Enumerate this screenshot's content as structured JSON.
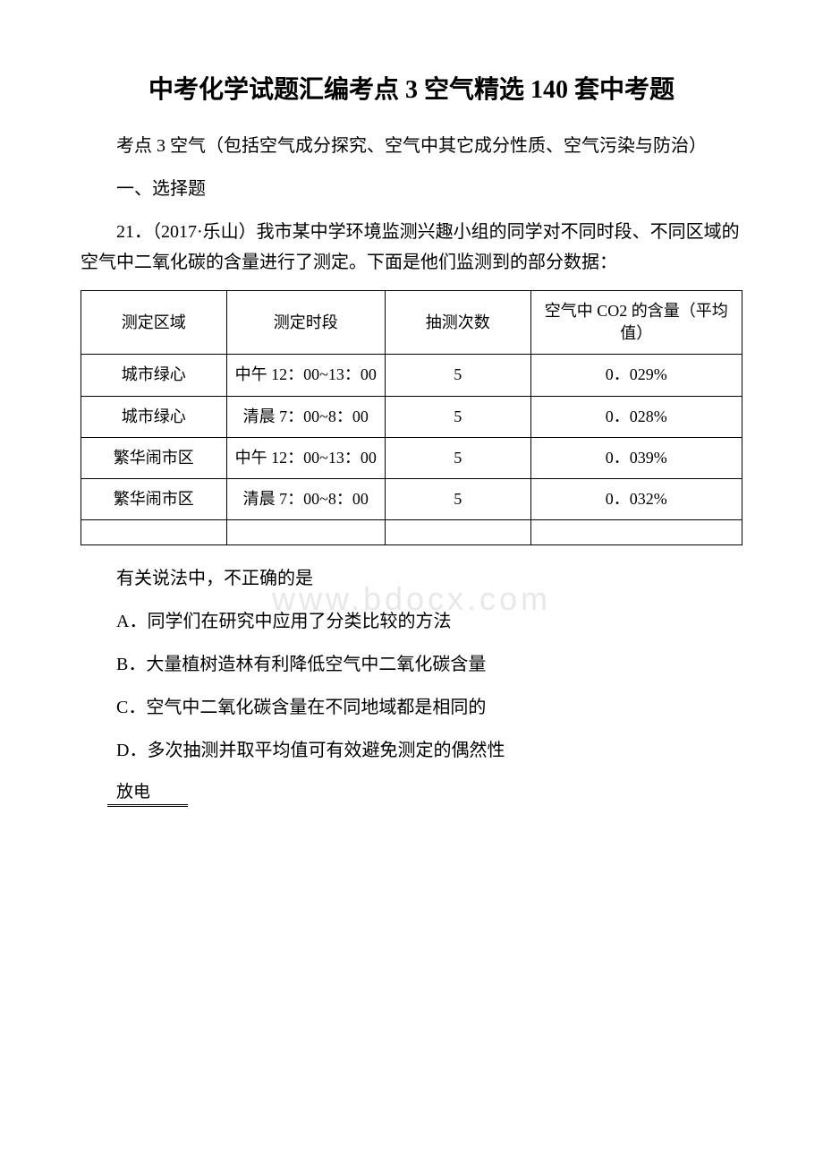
{
  "title": "中考化学试题汇编考点 3 空气精选 140 套中考题",
  "intro": "考点 3 空气（包括空气成分探究、空气中其它成分性质、空气污染与防治）",
  "sectionHeading": "一、选择题",
  "question": "21．（2017·乐山）我市某中学环境监测兴趣小组的同学对不同时段、不同区域的空气中二氧化碳的含量进行了测定。下面是他们监测到的部分数据：",
  "table": {
    "headers": [
      "测定区域",
      "测定时段",
      "抽测次数",
      "空气中 CO2 的含量（平均值）"
    ],
    "rows": [
      [
        "城市绿心",
        "中午 12：00~13：00",
        "5",
        "0．029%"
      ],
      [
        "城市绿心",
        "清晨 7：00~8：00",
        "5",
        "0．028%"
      ],
      [
        "繁华闹市区",
        "中午 12：00~13：00",
        "5",
        "0．039%"
      ],
      [
        "繁华闹市区",
        "清晨 7：00~8：00",
        "5",
        "0．032%"
      ]
    ]
  },
  "stem": "有关说法中，不正确的是",
  "options": {
    "A": "A．同学们在研究中应用了分类比较的方法",
    "B": "B．大量植树造林有利降低空气中二氧化碳含量",
    "C": "C．空气中二氧化碳含量在不同地域都是相同的",
    "D": "D．多次抽测并取平均值可有效避免测定的偶然性"
  },
  "footerLabel": "放电",
  "watermark": "www.bdocx.com"
}
